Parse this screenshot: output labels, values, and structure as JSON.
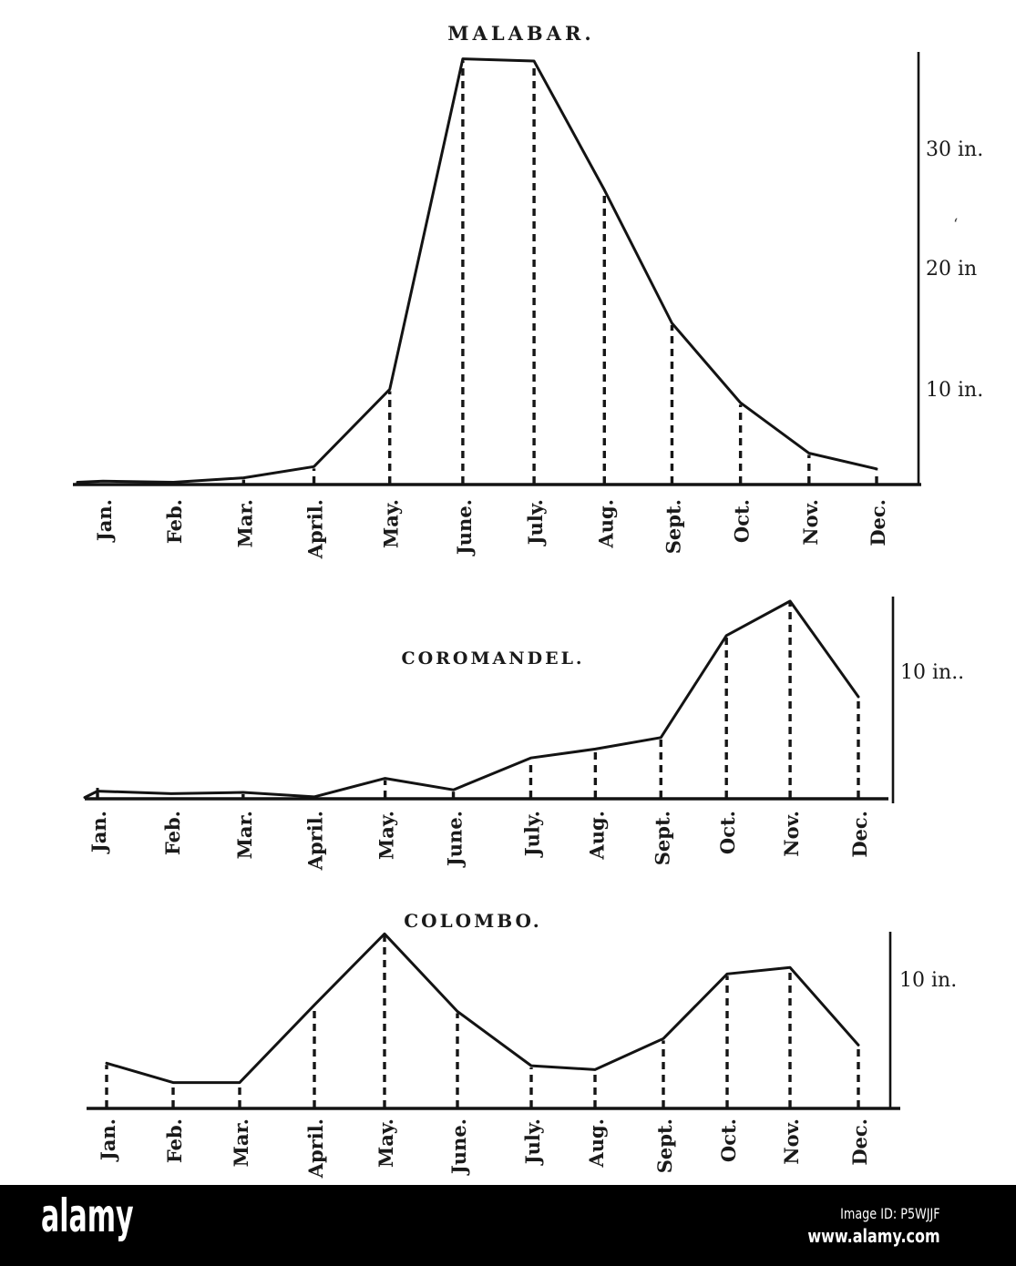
{
  "figure": {
    "description": "Monthly rainfall curves for three Indian Ocean coastal regions",
    "unit": "inches"
  },
  "chart_data": [
    {
      "type": "line",
      "title": "MALABAR.",
      "categories": [
        "Jan.",
        "Feb.",
        "Mar.",
        "April.",
        "May.",
        "June.",
        "July.",
        "Aug.",
        "Sept.",
        "Oct.",
        "Nov.",
        "Dec."
      ],
      "values": [
        0.3,
        0.2,
        0.6,
        1.6,
        8.5,
        38,
        37.8,
        26.3,
        14.4,
        7.3,
        2.8,
        1.4
      ],
      "ylabel_ticks": [
        {
          "value": 30,
          "label": "30 in."
        },
        {
          "value": 20,
          "label": "20 in"
        },
        {
          "value": 10,
          "label": "10 in."
        }
      ],
      "ylim": [
        0,
        38.5
      ],
      "axis_side": "right",
      "grid": "dashed vertical drop lines"
    },
    {
      "type": "line",
      "title": "COROMANDEL.",
      "categories": [
        "Jan.",
        "Feb.",
        "Mar.",
        "April.",
        "May.",
        "June.",
        "July.",
        "Aug.",
        "Sept.",
        "Oct.",
        "Nov.",
        "Dec."
      ],
      "values": [
        0.6,
        0.4,
        0.5,
        0.15,
        1.6,
        0.7,
        3.2,
        3.9,
        4.8,
        12.8,
        15.5,
        8.0
      ],
      "ylabel_ticks": [
        {
          "value": 10,
          "label": "10 in.."
        }
      ],
      "ylim": [
        0,
        16
      ],
      "axis_side": "right",
      "grid": "dashed vertical drop lines"
    },
    {
      "type": "line",
      "title": "COLOMBO.",
      "categories": [
        "Jan.",
        "Feb.",
        "Mar.",
        "April.",
        "May.",
        "June.",
        "July.",
        "Aug.",
        "Sept.",
        "Oct.",
        "Nov.",
        "Dec."
      ],
      "values": [
        3.5,
        2.0,
        2.0,
        8.0,
        13.5,
        7.5,
        3.3,
        3.0,
        5.4,
        10.4,
        10.9,
        4.9
      ],
      "ylabel_ticks": [
        {
          "value": 10,
          "label": "10 in."
        }
      ],
      "ylim": [
        0,
        13.7
      ],
      "axis_side": "right",
      "grid": "dashed vertical drop lines"
    }
  ],
  "watermark": {
    "logo": "alamy",
    "image_id": "Image ID: P5WJJF",
    "url": "www.alamy.com"
  }
}
